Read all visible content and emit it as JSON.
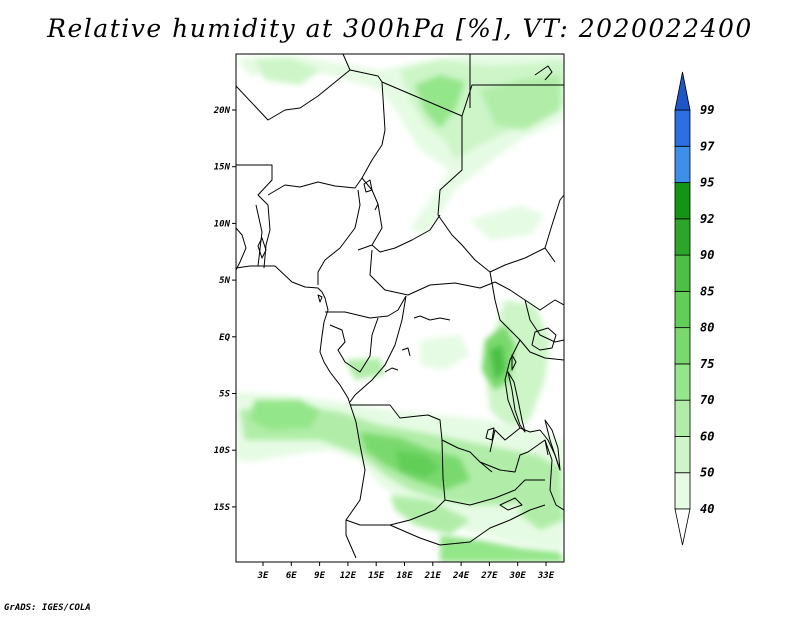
{
  "map": {
    "title": "Relative humidity at 300hPa [%], VT: 2020022400",
    "variable": "Relative humidity at 300hPa",
    "unit": "%",
    "valid_time": "2020022400",
    "lat_labels": [
      "20N",
      "15N",
      "10N",
      "5N",
      "EQ",
      "5S",
      "10S",
      "15S"
    ],
    "lon_labels": [
      "3E",
      "6E",
      "9E",
      "12E",
      "15E",
      "18E",
      "21E",
      "24E",
      "27E",
      "30E",
      "33E"
    ],
    "colors": {
      "rh_40": "#e6fbe4",
      "rh_50": "#cdf5c8",
      "rh_60": "#b1eda8",
      "rh_70": "#94e68a",
      "rh_75": "#7ad96e",
      "rh_80": "#62ce58",
      "rh_85": "#4cbf44",
      "rh_90": "#2ca62a",
      "rh_92": "#149414",
      "rh_95": "#3f8fe8",
      "rh_97": "#2d6fe0",
      "rh_99": "#1e56c8",
      "borders": "#000000"
    },
    "colorbar": {
      "levels": [
        "40",
        "50",
        "60",
        "70",
        "75",
        "80",
        "85",
        "90",
        "92",
        "95",
        "97",
        "99"
      ]
    }
  },
  "footer": {
    "credit": "GrADS: IGES/COLA"
  }
}
